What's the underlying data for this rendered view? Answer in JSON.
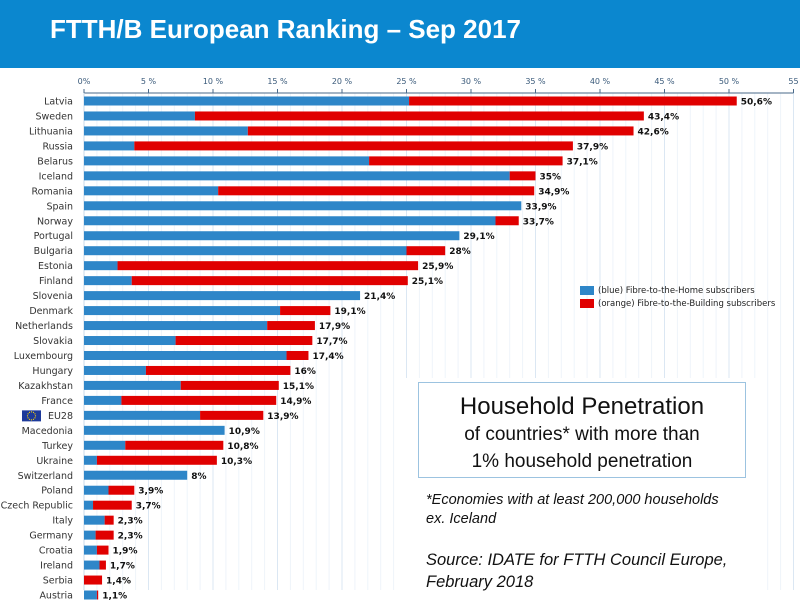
{
  "header": {
    "title": "FTTH/B European Ranking – Sep 2017"
  },
  "legend": {
    "ftth": "(blue) Fibre-to-the-Home subscribers",
    "fttb": "(orange) Fibre-to-the-Building subscribers"
  },
  "box": {
    "line1": "Household Penetration",
    "line2": "of countries* with more than",
    "line3": "1% household penetration"
  },
  "footnote": {
    "line1": "*Economies with at least 200,000 households",
    "line2": "ex. Iceland"
  },
  "source": {
    "line1": "Source: IDATE for FTTH Council Europe,",
    "line2": "February 2018"
  },
  "colors": {
    "ftth": "#2e86c8",
    "fttb": "#e00000",
    "header": "#0b87cf"
  },
  "eu_flag_icon": "eu-flag",
  "chart_data": {
    "type": "bar",
    "orientation": "horizontal",
    "stacked": true,
    "xlim": [
      0,
      55
    ],
    "xticks": [
      "0%",
      "5 %",
      "10 %",
      "15 %",
      "20 %",
      "25 %",
      "30 %",
      "35 %",
      "40 %",
      "45 %",
      "50 %",
      "55"
    ],
    "grid": true,
    "legend_position": "right",
    "categories": [
      "Latvia",
      "Sweden",
      "Lithuania",
      "Russia",
      "Belarus",
      "Iceland",
      "Romania",
      "Spain",
      "Norway",
      "Portugal",
      "Bulgaria",
      "Estonia",
      "Finland",
      "Slovenia",
      "Denmark",
      "Netherlands",
      "Slovakia",
      "Luxembourg",
      "Hungary",
      "Kazakhstan",
      "France",
      "EU28",
      "Macedonia",
      "Turkey",
      "Ukraine",
      "Switzerland",
      "Poland",
      "Czech Republic",
      "Italy",
      "Germany",
      "Croatia",
      "Ireland",
      "Serbia",
      "Austria"
    ],
    "series": [
      {
        "name": "(blue) Fibre-to-the-Home subscribers",
        "values": [
          25.2,
          8.6,
          12.7,
          3.9,
          22.1,
          33.0,
          10.4,
          33.9,
          31.9,
          29.1,
          25.0,
          2.6,
          3.7,
          21.4,
          15.2,
          14.2,
          7.1,
          15.7,
          4.8,
          7.5,
          2.9,
          9.0,
          10.9,
          3.2,
          1.0,
          8.0,
          1.9,
          0.7,
          1.6,
          0.9,
          1.0,
          1.2,
          0,
          1.0
        ]
      },
      {
        "name": "(orange) Fibre-to-the-Building subscribers",
        "values": [
          25.4,
          34.8,
          29.9,
          34.0,
          15.0,
          2.0,
          24.5,
          0,
          1.8,
          0,
          3.0,
          23.3,
          21.4,
          0,
          3.9,
          3.7,
          10.6,
          1.7,
          11.2,
          7.6,
          12.0,
          4.9,
          0,
          7.6,
          9.3,
          0,
          2.0,
          3.0,
          0.7,
          1.4,
          0.9,
          0.5,
          1.4,
          0.1
        ]
      }
    ],
    "totals": [
      50.6,
      43.4,
      42.6,
      37.9,
      37.1,
      35,
      34.9,
      33.9,
      33.7,
      29.1,
      28,
      25.9,
      25.1,
      21.4,
      19.1,
      17.9,
      17.7,
      17.4,
      16,
      15.1,
      14.9,
      13.9,
      10.9,
      10.8,
      10.3,
      8,
      3.9,
      3.7,
      2.3,
      2.3,
      1.9,
      1.7,
      1.4,
      1.1
    ],
    "data_labels": [
      "50,6%",
      "43,4%",
      "42,6%",
      "37,9%",
      "37,1%",
      "35%",
      "34,9%",
      "33,9%",
      "33,7%",
      "29,1%",
      "28%",
      "25,9%",
      "25,1%",
      "21,4%",
      "19,1%",
      "17,9%",
      "17,7%",
      "17,4%",
      "16%",
      "15,1%",
      "14,9%",
      "13,9%",
      "10,9%",
      "10,8%",
      "10,3%",
      "8%",
      "3,9%",
      "3,7%",
      "2,3%",
      "2,3%",
      "1,9%",
      "1,7%",
      "1,4%",
      "1,1%"
    ]
  }
}
